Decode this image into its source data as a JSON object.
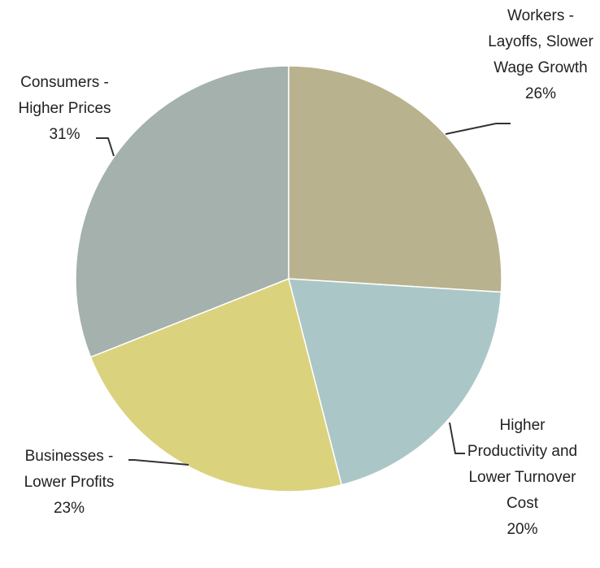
{
  "chart_data": {
    "type": "pie",
    "categories": [
      "Workers - Layoffs, Slower Wage Growth",
      "Higher Productivity and Lower Turnover Cost",
      "Businesses - Lower Profits",
      "Consumers -Higher Prices"
    ],
    "values": [
      26,
      20,
      23,
      31
    ],
    "value_labels": [
      "26%",
      "20%",
      "23%",
      "31%"
    ],
    "colors": [
      "#b8b28e",
      "#abc6c6",
      "#dbd27e",
      "#a4b1ad"
    ]
  }
}
